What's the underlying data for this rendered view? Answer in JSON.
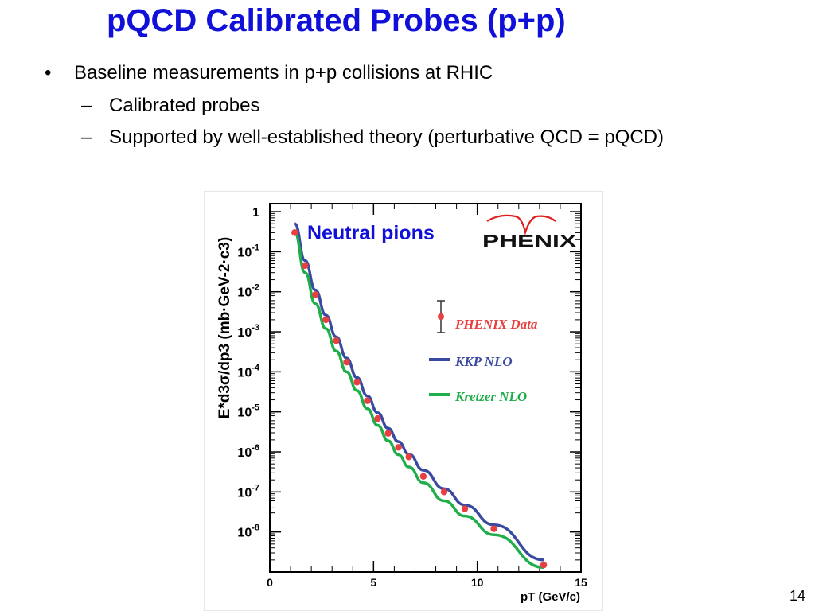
{
  "slide": {
    "title": "pQCD Calibrated Probes (p+p)",
    "bullet_symbol": "•",
    "dash_symbol": "–",
    "bullet": "Baseline measurements in p+p collisions at RHIC",
    "subbullets": [
      "Calibrated probes",
      "Supported by well-established theory (perturbative QCD = pQCD)"
    ],
    "page_number": "14"
  },
  "colors": {
    "title": "#1010d8",
    "data": "#e84040",
    "kkp": "#3a4aa0",
    "kretzer": "#1fae4a",
    "annotation": "#1010d8"
  },
  "chart_data": {
    "type": "scatter",
    "annotation": "Neutral pions",
    "logo": "PHENIX",
    "xlabel": "pT (GeV/c)",
    "ylabel": "E*d3σ/dp3 (mb·GeV-2·c3)",
    "xlim": [
      0,
      15
    ],
    "ylim_log10": [
      -9,
      0.2
    ],
    "log_y": true,
    "x_ticks": [
      "0",
      "5",
      "10",
      "15"
    ],
    "y_ticks": [
      {
        "base": "1",
        "exp": ""
      },
      {
        "base": "10",
        "exp": "-1"
      },
      {
        "base": "10",
        "exp": "-2"
      },
      {
        "base": "10",
        "exp": "-3"
      },
      {
        "base": "10",
        "exp": "-4"
      },
      {
        "base": "10",
        "exp": "-5"
      },
      {
        "base": "10",
        "exp": "-6"
      },
      {
        "base": "10",
        "exp": "-7"
      },
      {
        "base": "10",
        "exp": "-8"
      }
    ],
    "legend_placement": "right",
    "legend": [
      "PHENIX Data",
      "KKP NLO",
      "Kretzer NLO"
    ],
    "series": [
      {
        "name": "PHENIX Data",
        "kind": "points",
        "x": [
          1.2,
          1.7,
          2.2,
          2.7,
          3.2,
          3.7,
          4.2,
          4.7,
          5.2,
          5.7,
          6.2,
          6.7,
          7.4,
          8.4,
          9.4,
          10.8,
          13.2
        ],
        "y": [
          0.3,
          0.045,
          0.0085,
          0.002,
          0.0006,
          0.000175,
          5.5e-05,
          1.9e-05,
          6.8e-06,
          2.9e-06,
          1.3e-06,
          7.5e-07,
          2.45e-07,
          1e-07,
          3.8e-08,
          1.2e-08,
          1.5e-09
        ]
      },
      {
        "name": "KKP NLO",
        "kind": "line",
        "x": [
          1.2,
          1.7,
          2.2,
          2.7,
          3.2,
          3.7,
          4.2,
          4.7,
          5.2,
          5.7,
          6.2,
          6.7,
          7.4,
          8.4,
          9.4,
          10.8,
          13.2
        ],
        "y": [
          0.5,
          0.06,
          0.011,
          0.0026,
          0.00075,
          0.00022,
          7.2e-05,
          2.5e-05,
          9.5e-06,
          3.9e-06,
          1.8e-06,
          8.8e-07,
          3.5e-07,
          1.2e-07,
          4.7e-08,
          1.5e-08,
          2e-09
        ]
      },
      {
        "name": "Kretzer NLO",
        "kind": "line",
        "x": [
          1.2,
          1.7,
          2.2,
          2.7,
          3.2,
          3.7,
          4.2,
          4.7,
          5.2,
          5.7,
          6.2,
          6.7,
          7.4,
          8.4,
          9.4,
          10.8,
          13.2
        ],
        "y": [
          0.3,
          0.03,
          0.005,
          0.0012,
          0.00033,
          0.0001,
          3.4e-05,
          1.2e-05,
          4.6e-06,
          1.9e-06,
          8.5e-07,
          4.2e-07,
          1.7e-07,
          6e-08,
          2.5e-08,
          8.5e-09,
          1.3e-09
        ]
      }
    ]
  }
}
